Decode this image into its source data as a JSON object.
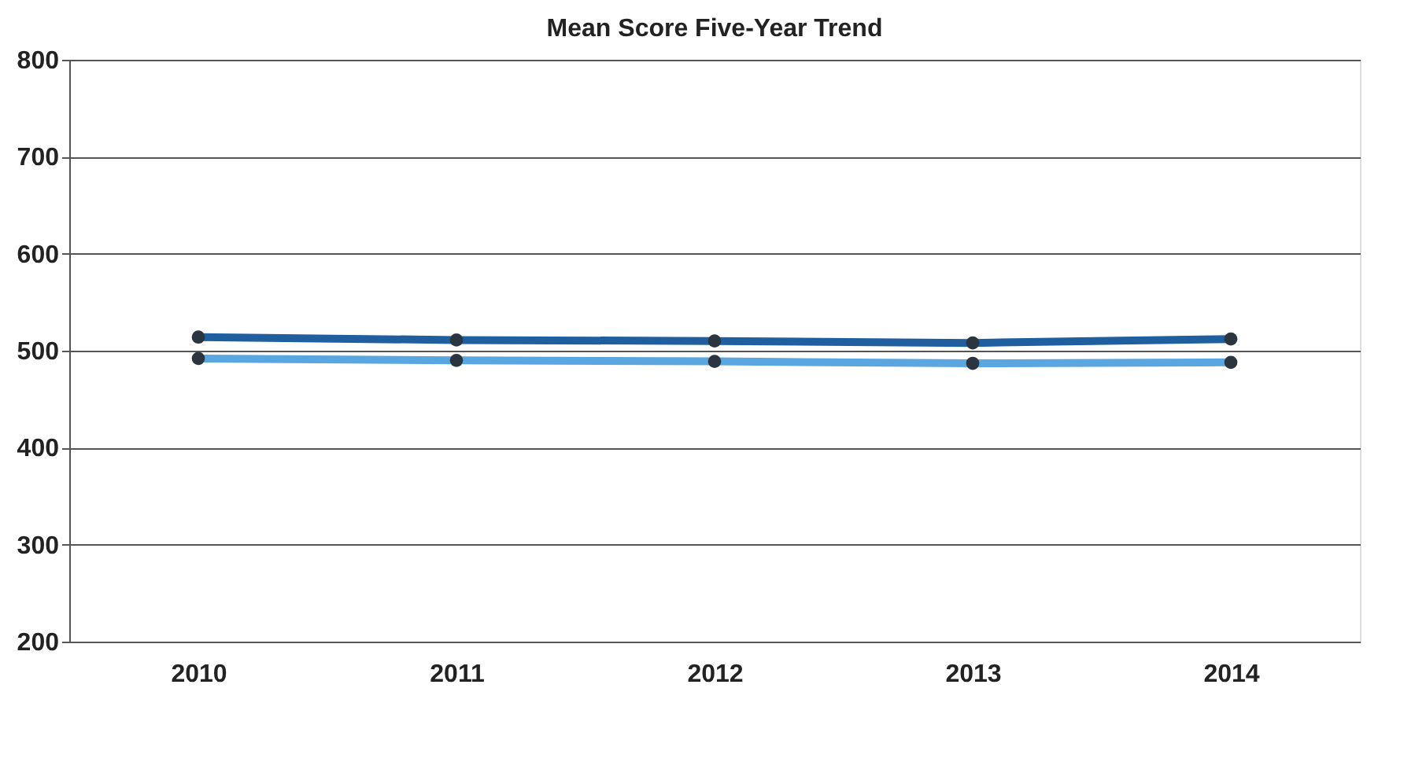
{
  "chart_data": {
    "type": "line",
    "title": "Mean Score Five-Year Trend",
    "categories": [
      "2010",
      "2011",
      "2012",
      "2013",
      "2014"
    ],
    "series": [
      {
        "color": "#1f5f9f",
        "values": [
          514,
          511,
          510,
          508,
          512
        ]
      },
      {
        "color": "#5aa6e0",
        "values": [
          492,
          490,
          489,
          487,
          488
        ]
      }
    ],
    "ylim": [
      200,
      800
    ],
    "yticks": [
      200,
      300,
      400,
      500,
      600,
      700,
      800
    ],
    "grid": "y",
    "marker": "circle"
  }
}
